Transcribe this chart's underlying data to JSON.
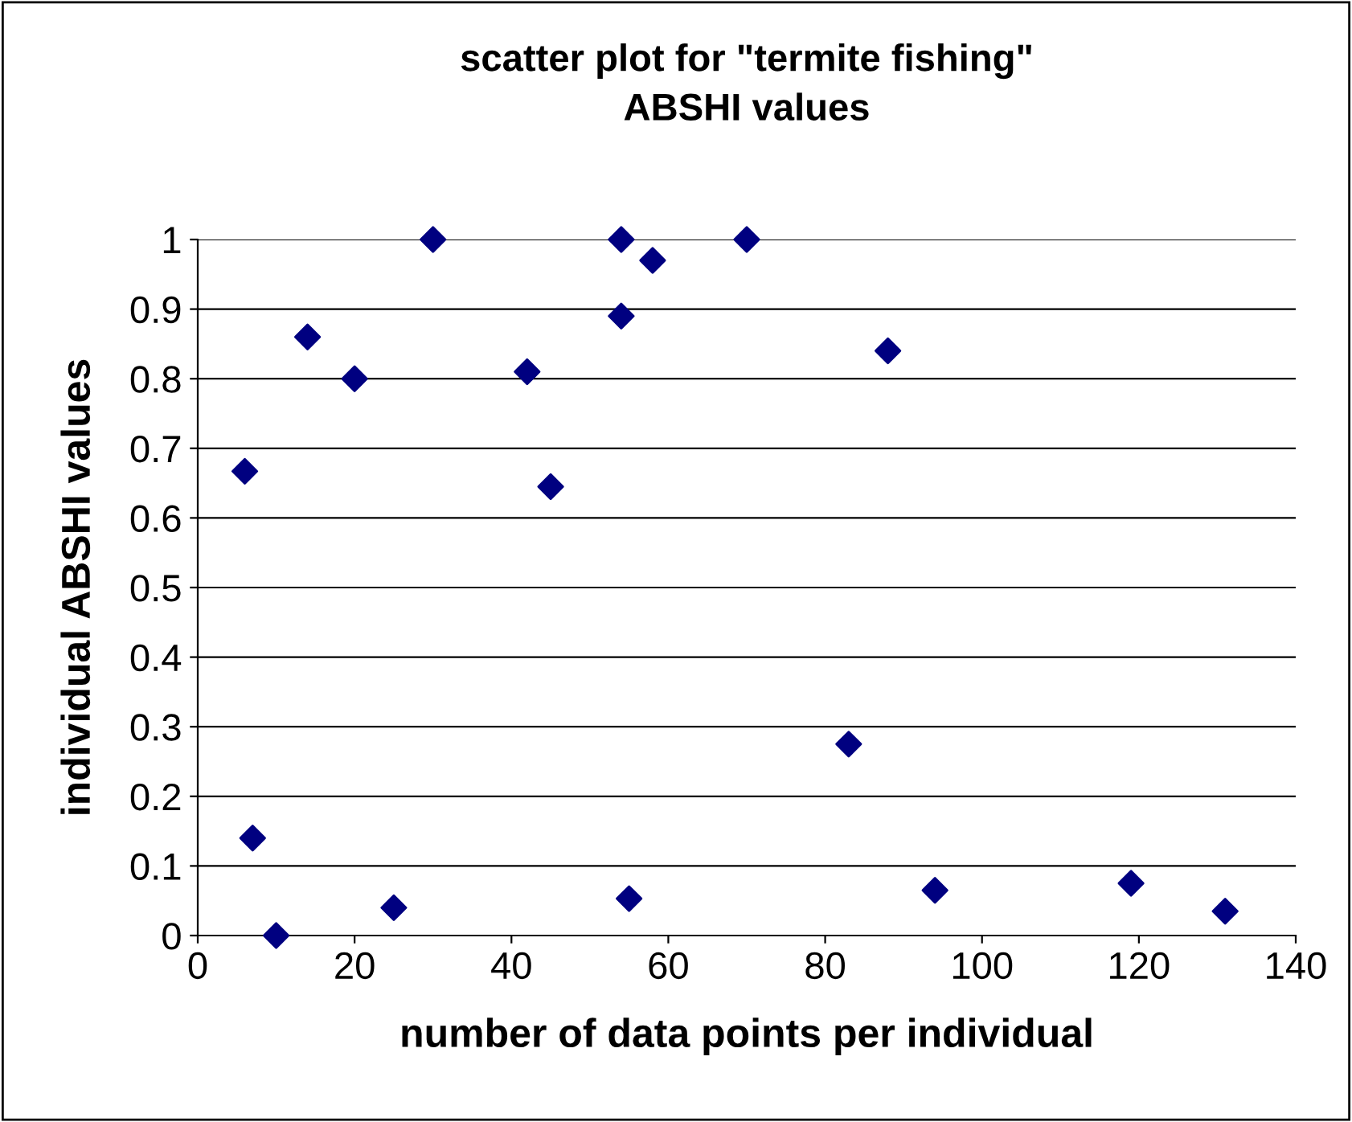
{
  "chart_data": {
    "type": "scatter",
    "title": "scatter plot for \"termite fishing\"\nABSHI values",
    "xlabel": "number of data points per individual",
    "ylabel": "individual ABSHI values",
    "x": [
      6,
      7,
      10,
      14,
      20,
      25,
      30,
      42,
      45,
      54,
      54,
      55,
      58,
      70,
      83,
      88,
      94,
      119,
      131
    ],
    "values": [
      0.667,
      0.14,
      0,
      0.86,
      0.8,
      0.04,
      1.0,
      0.81,
      0.645,
      1.0,
      0.89,
      0.053,
      0.97,
      1.0,
      0.275,
      0.84,
      0.065,
      0.075,
      0.035
    ],
    "color": "#000080",
    "marker": "diamond",
    "grid": "y",
    "xlim": [
      0,
      140
    ],
    "xticks": [
      0,
      20,
      40,
      60,
      80,
      100,
      120,
      140
    ],
    "ylim": [
      0,
      1
    ],
    "yticks": [
      0,
      0.1,
      0.2,
      0.3,
      0.4,
      0.5,
      0.6,
      0.7,
      0.8,
      0.9,
      1
    ]
  }
}
